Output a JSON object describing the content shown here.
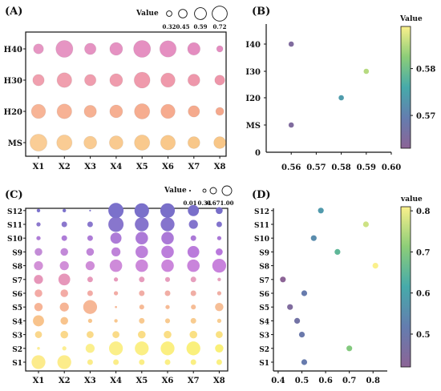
{
  "chart_data": [
    {
      "id": "A",
      "type": "scatter",
      "panel_label": "(A)",
      "categories_x": [
        "X1",
        "X2",
        "X3",
        "X4",
        "X5",
        "X6",
        "X7",
        "X8"
      ],
      "categories_y": [
        "MS",
        "H20",
        "H30",
        "H40"
      ],
      "values": [
        [
          0.7,
          0.64,
          0.55,
          0.58,
          0.64,
          0.62,
          0.52,
          0.52
        ],
        [
          0.6,
          0.62,
          0.53,
          0.55,
          0.64,
          0.6,
          0.5,
          0.38
        ],
        [
          0.5,
          0.62,
          0.5,
          0.55,
          0.66,
          0.6,
          0.52,
          0.45
        ],
        [
          0.45,
          0.7,
          0.5,
          0.55,
          0.7,
          0.68,
          0.54,
          0.32
        ]
      ],
      "size_legend": {
        "title": "Value",
        "values": [
          0.32,
          0.45,
          0.59,
          0.72
        ]
      },
      "size_range": [
        0.32,
        0.72
      ],
      "color_scheme": "row-gradient"
    },
    {
      "id": "B",
      "type": "scatter",
      "panel_label": "(B)",
      "points": [
        {
          "y": "MS",
          "x": 0.56,
          "value": 0.565
        },
        {
          "y": "I20",
          "x": 0.58,
          "value": 0.574
        },
        {
          "y": "I30",
          "x": 0.59,
          "value": 0.585
        },
        {
          "y": "I40",
          "x": 0.56,
          "value": 0.565
        }
      ],
      "categories_y": [
        "MS",
        "I20",
        "I30",
        "I40"
      ],
      "ylim_zero_label": "0",
      "xlim": [
        0.55,
        0.6
      ],
      "xticks": [
        "0.56",
        "0.57",
        "0.58",
        "0.59",
        "0.60"
      ],
      "colorbar": {
        "title": "Value",
        "ticks": [
          "0.58",
          "0.57"
        ],
        "tick_values": [
          0.58,
          0.57
        ],
        "range": [
          0.563,
          0.589
        ]
      }
    },
    {
      "id": "C",
      "type": "scatter",
      "panel_label": "(C)",
      "categories_x": [
        "X1",
        "X2",
        "X3",
        "X4",
        "X5",
        "X6",
        "X7",
        "X8"
      ],
      "categories_y": [
        "S1",
        "S2",
        "S3",
        "S4",
        "S5",
        "S6",
        "S7",
        "S8",
        "S9",
        "S10",
        "S11",
        "S12"
      ],
      "values": [
        [
          0.9,
          0.9,
          0.3,
          0.3,
          0.3,
          0.3,
          0.3,
          0.3
        ],
        [
          0.1,
          0.2,
          0.55,
          0.9,
          0.9,
          0.9,
          0.9,
          0.5
        ],
        [
          0.4,
          0.45,
          0.4,
          0.4,
          0.45,
          0.45,
          0.45,
          0.4
        ],
        [
          0.7,
          0.45,
          0.2,
          0.15,
          0.3,
          0.25,
          0.3,
          0.2
        ],
        [
          0.5,
          0.55,
          0.9,
          0.05,
          0.25,
          0.2,
          0.25,
          0.5
        ],
        [
          0.45,
          0.45,
          0.3,
          0.2,
          0.3,
          0.3,
          0.3,
          0.2
        ],
        [
          0.55,
          0.75,
          0.3,
          0.2,
          0.3,
          0.25,
          0.3,
          0.15
        ],
        [
          0.55,
          0.55,
          0.55,
          0.8,
          0.8,
          0.8,
          0.8,
          0.9
        ],
        [
          0.45,
          0.45,
          0.45,
          0.55,
          0.8,
          0.8,
          0.75,
          0.4
        ],
        [
          0.2,
          0.3,
          0.3,
          0.7,
          0.8,
          0.8,
          0.3,
          0.2
        ],
        [
          0.2,
          0.3,
          0.3,
          1.0,
          0.9,
          0.9,
          0.55,
          0.3
        ],
        [
          0.15,
          0.15,
          0.02,
          1.0,
          0.95,
          0.95,
          0.7,
          0.4
        ]
      ],
      "size_legend": {
        "title": "Value",
        "values": [
          "0.01",
          "0.34",
          "0.67",
          "1.00"
        ]
      },
      "size_range": [
        0.01,
        1.0
      ],
      "color_scheme": "row-gradient"
    },
    {
      "id": "D",
      "type": "scatter",
      "panel_label": "(D)",
      "categories_y": [
        "S1",
        "S2",
        "S3",
        "S4",
        "S5",
        "S6",
        "S7",
        "S8",
        "S9",
        "S10",
        "S11",
        "S12"
      ],
      "points": [
        {
          "y": "S1",
          "x": 0.51,
          "value": 0.51
        },
        {
          "y": "S2",
          "x": 0.7,
          "value": 0.7
        },
        {
          "y": "S3",
          "x": 0.5,
          "value": 0.5
        },
        {
          "y": "S4",
          "x": 0.48,
          "value": 0.48
        },
        {
          "y": "S5",
          "x": 0.45,
          "value": 0.45
        },
        {
          "y": "S6",
          "x": 0.51,
          "value": 0.51
        },
        {
          "y": "S7",
          "x": 0.42,
          "value": 0.42
        },
        {
          "y": "S8",
          "x": 0.81,
          "value": 0.81
        },
        {
          "y": "S9",
          "x": 0.65,
          "value": 0.65
        },
        {
          "y": "S10",
          "x": 0.55,
          "value": 0.55
        },
        {
          "y": "S11",
          "x": 0.77,
          "value": 0.77
        },
        {
          "y": "S12",
          "x": 0.58,
          "value": 0.58
        }
      ],
      "xlim": [
        0.38,
        0.86
      ],
      "xticks": [
        "0.4",
        "0.5",
        "0.6",
        "0.7",
        "0.8"
      ],
      "colorbar": {
        "title": "value",
        "ticks": [
          "0.8",
          "0.7",
          "0.6",
          "0.5"
        ],
        "tick_values": [
          0.8,
          0.7,
          0.6,
          0.5
        ],
        "range": [
          0.42,
          0.81
        ]
      }
    }
  ]
}
